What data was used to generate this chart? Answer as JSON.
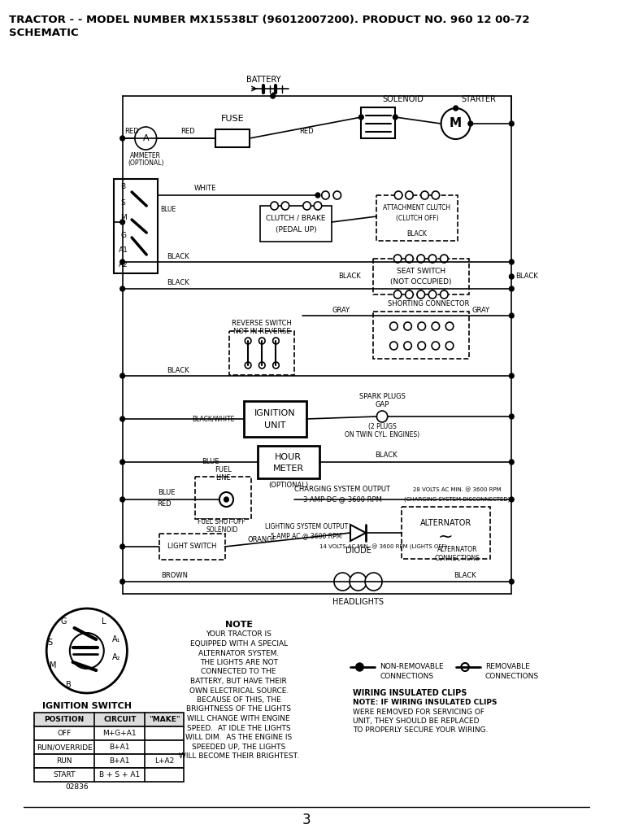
{
  "title_line1": "TRACTOR - - MODEL NUMBER MX15538LT (96012007200). PRODUCT NO. 960 12 00-72",
  "title_line2": "SCHEMATIC",
  "page_number": "3",
  "background_color": "#ffffff",
  "diagram_color": "#000000",
  "note_title": "NOTE",
  "note_text": "YOUR TRACTOR IS\nEQUIPPED WITH A SPECIAL\nALTERNATOR SYSTEM.\nTHE LIGHTS ARE NOT\nCONNECTED TO THE\nBATTERY, BUT HAVE THEIR\nOWN ELECTRICAL SOURCE.\nBECAUSE OF THIS, THE\nBRIGHTNESS OF THE LIGHTS\nWILL CHANGE WITH ENGINE\nSPEED.  AT IDLE THE LIGHTS\nWILL DIM.  AS THE ENGINE IS\nSPEEDED UP, THE LIGHTS\nWILL BECOME THEIR BRIGHTEST.",
  "ignition_switch_label": "IGNITION SWITCH",
  "table_headers": [
    "POSITION",
    "CIRCUIT",
    "\"MAKE\""
  ],
  "table_rows": [
    [
      "OFF",
      "M+G+A1",
      ""
    ],
    [
      "RUN/OVERRIDE",
      "B+A1",
      ""
    ],
    [
      "RUN",
      "B+A1",
      "L+A2"
    ],
    [
      "START",
      "B + S + A1",
      ""
    ]
  ],
  "wiring_clips_title": "WIRING INSULATED CLIPS",
  "wiring_clips_note": "NOTE: IF WIRING INSULATED CLIPS",
  "wiring_clips_lines": [
    "NOTE: IF WIRING INSULATED CLIPS",
    "WERE REMOVED FOR SERVICING OF",
    "UNIT, THEY SHOULD BE REPLACED",
    "TO PROPERLY SECURE YOUR WIRING."
  ],
  "non_removable_label": "NON-REMOVABLE\nCONNECTIONS",
  "removable_label": "REMOVABLE\nCONNECTIONS",
  "part_number": "02836",
  "labels": {
    "battery": "BATTERY",
    "solenoid": "SOLENOID",
    "starter": "STARTER",
    "fuse": "FUSE",
    "ammeter_line1": "AMMETER",
    "ammeter_line2": "(OPTIONAL)",
    "red": "RED",
    "black": "BLACK",
    "white": "WHITE",
    "gray": "GRAY",
    "blue": "BLUE",
    "orange": "ORANGE",
    "brown": "BROWN",
    "black_white": "BLACK/WHITE",
    "shorting_connector": "SHORTING CONNECTOR",
    "diode": "DIODE",
    "alternator": "ALTERNATOR",
    "alternator_connections": "ALTERNATOR\nCONNECTIONS",
    "headlights": "HEADLIGHTS",
    "fuel_shutoff_line1": "FUEL SHUT-OFF",
    "fuel_shutoff_line2": "SOLENOID",
    "charging_line1": "CHARGING SYSTEM OUTPUT",
    "charging_line2": "3 AMP DC @ 3600 RPM",
    "lighting_line1": "LIGHTING SYSTEM OUTPUT",
    "lighting_line2": "5 AMP AC @ 3600 RPM",
    "28v_line1": "28 VOLTS AC MIN. @ 3600 RPM",
    "28v_line2": "(CHARGING SYSTEM DISCONNECTED)",
    "14v": "14 VOLTS AC MIN. @ 3600 RPM (LIGHTS OFF)"
  }
}
